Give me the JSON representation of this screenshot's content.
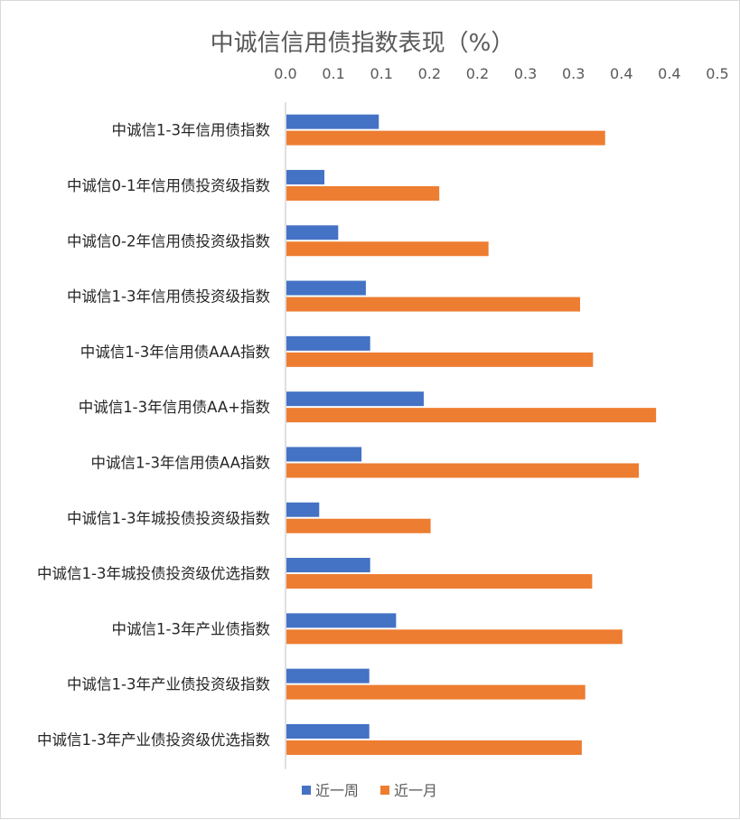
{
  "chart_data": {
    "type": "bar",
    "orientation": "horizontal",
    "title": "中诚信信用债指数表现（%）",
    "xlabel": "",
    "ylabel": "",
    "xlim": [
      0,
      0.5
    ],
    "x_tick_labels": [
      "0.0",
      "0.1",
      "0.1",
      "0.2",
      "0.2",
      "0.3",
      "0.3",
      "0.4",
      "0.4",
      "0.5"
    ],
    "grid": false,
    "legend_position": "bottom",
    "categories": [
      "中诚信1-3年信用债指数",
      "中诚信0-1年信用债投资级指数",
      "中诚信0-2年信用债投资级指数",
      "中诚信1-3年信用债投资级指数",
      "中诚信1-3年信用债AAA指数",
      "中诚信1-3年信用债AA+指数",
      "中诚信1-3年信用债AA指数",
      "中诚信1-3年城投债投资级指数",
      "中诚信1-3年城投债投资级优选指数",
      "中诚信1-3年产业债指数",
      "中诚信1-3年产业债投资级指数",
      "中诚信1-3年产业债投资级优选指数"
    ],
    "series": [
      {
        "name": "近一周",
        "color": "#4472C4",
        "values": [
          0.108,
          0.045,
          0.061,
          0.093,
          0.098,
          0.16,
          0.088,
          0.039,
          0.098,
          0.128,
          0.097,
          0.097
        ]
      },
      {
        "name": "近一月",
        "color": "#ED7D31",
        "values": [
          0.37,
          0.178,
          0.235,
          0.341,
          0.356,
          0.429,
          0.409,
          0.168,
          0.355,
          0.39,
          0.347,
          0.343
        ]
      }
    ]
  }
}
